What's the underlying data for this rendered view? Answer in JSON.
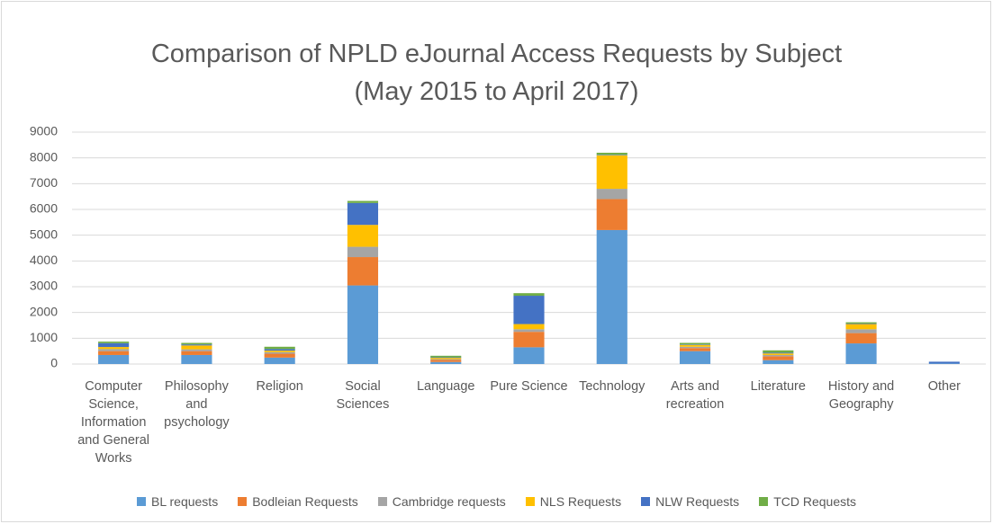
{
  "chart_data": {
    "type": "stacked_bar",
    "title": "Comparison of NPLD eJournal Access Requests by Subject",
    "subtitle": "(May 2015 to April 2017)",
    "categories": [
      "Computer Science, Information and General Works",
      "Philosophy and psychology",
      "Religion",
      "Social Sciences",
      "Language",
      "Pure Science",
      "Technology",
      "Arts and recreation",
      "Literature",
      "History and Geography",
      "Other"
    ],
    "series": [
      {
        "name": "BL requests",
        "color": "#5b9bd5",
        "values": [
          350,
          350,
          250,
          3050,
          80,
          650,
          5200,
          500,
          150,
          800,
          20
        ]
      },
      {
        "name": "Bodleian Requests",
        "color": "#ed7d31",
        "values": [
          150,
          150,
          150,
          1100,
          80,
          600,
          1200,
          120,
          150,
          400,
          0
        ]
      },
      {
        "name": "Cambridge requests",
        "color": "#a5a5a5",
        "values": [
          80,
          70,
          60,
          400,
          30,
          100,
          400,
          50,
          50,
          150,
          0
        ]
      },
      {
        "name": "NLS Requests",
        "color": "#ffc000",
        "values": [
          80,
          150,
          60,
          850,
          50,
          200,
          1300,
          70,
          60,
          200,
          0
        ]
      },
      {
        "name": "NLW Requests",
        "color": "#4472c4",
        "values": [
          150,
          40,
          60,
          850,
          20,
          1100,
          20,
          20,
          30,
          20,
          70
        ]
      },
      {
        "name": "TCD Requests",
        "color": "#70ad47",
        "values": [
          60,
          60,
          90,
          80,
          60,
          100,
          80,
          60,
          90,
          50,
          0
        ]
      }
    ],
    "ylim": [
      0,
      9000
    ],
    "yticks": [
      0,
      1000,
      2000,
      3000,
      4000,
      5000,
      6000,
      7000,
      8000,
      9000
    ],
    "grid": true,
    "legend": "bottom"
  }
}
